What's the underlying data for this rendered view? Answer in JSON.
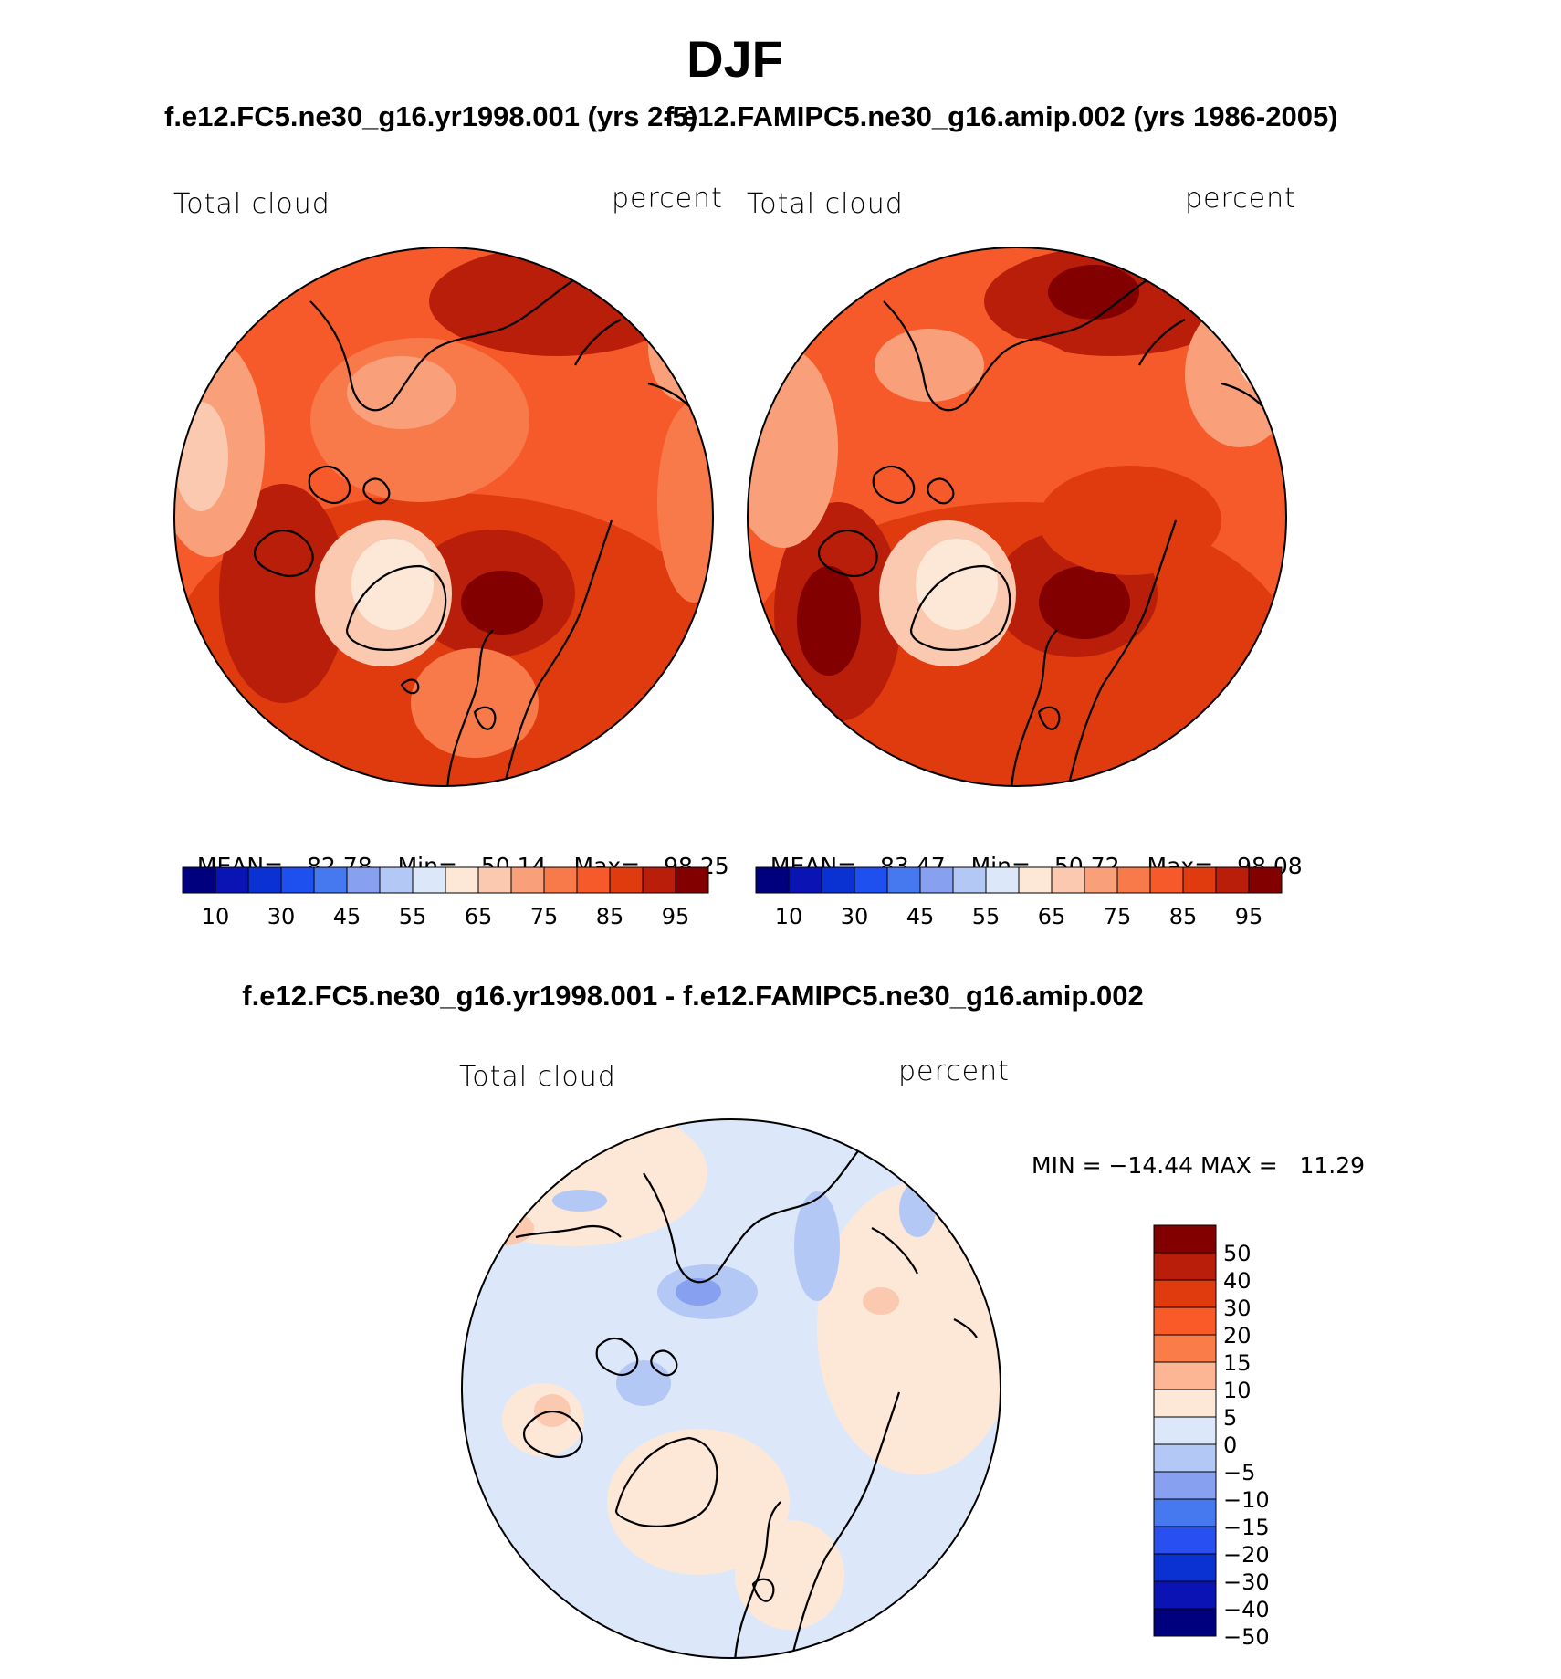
{
  "figure": {
    "season": "DJF",
    "case1_title": "f.e12.FC5.ne30_g16.yr1998.001 (yrs 2-5)",
    "case2_title": "f.e12.FAMIPC5.ne30_g16.amip.002 (yrs 1986-2005)",
    "diff_title": "f.e12.FC5.ne30_g16.yr1998.001 - f.e12.FAMIPC5.ne30_g16.amip.002"
  },
  "panels": {
    "left": {
      "variable": "Total cloud",
      "units": "percent",
      "stats": {
        "mean_label": "MEAN=",
        "mean": "82.78",
        "min_label": "Min=",
        "min": "50.14",
        "max_label": "Max=",
        "max": "98.25"
      }
    },
    "right": {
      "variable": "Total cloud",
      "units": "percent",
      "stats": {
        "mean_label": "MEAN=",
        "mean": "83.47",
        "min_label": "Min=",
        "min": "50.72",
        "max_label": "Max=",
        "max": "98.08"
      }
    },
    "diff": {
      "variable": "Total cloud",
      "units": "percent",
      "minmax": "MIN = −14.44 MAX =   11.29"
    }
  },
  "colorbars": {
    "abs_colors": [
      "#00007f",
      "#0a14b4",
      "#0a32d2",
      "#1e50f0",
      "#4678f0",
      "#87a0f0",
      "#b4c8f5",
      "#dce8fa",
      "#fde8d8",
      "#fbc8b0",
      "#f9a07a",
      "#f87a4a",
      "#f75a2a",
      "#e03a0f",
      "#b81e0a",
      "#820000"
    ],
    "abs_tick_labels": [
      "10",
      "30",
      "45",
      "55",
      "65",
      "75",
      "85",
      "95"
    ],
    "diff_colors": [
      "#820000",
      "#b81e0a",
      "#e03a0f",
      "#fa5a28",
      "#fa7c48",
      "#fcb694",
      "#fde8d8",
      "#dce8fa",
      "#b4c8f5",
      "#87a0f0",
      "#4678f0",
      "#2850f0",
      "#0a32d2",
      "#0a14b4",
      "#00007f"
    ],
    "diff_tick_labels": [
      "50",
      "40",
      "30",
      "20",
      "15",
      "10",
      "5",
      "0",
      "−5",
      "−10",
      "−15",
      "−20",
      "−30",
      "−40",
      "−50"
    ]
  }
}
